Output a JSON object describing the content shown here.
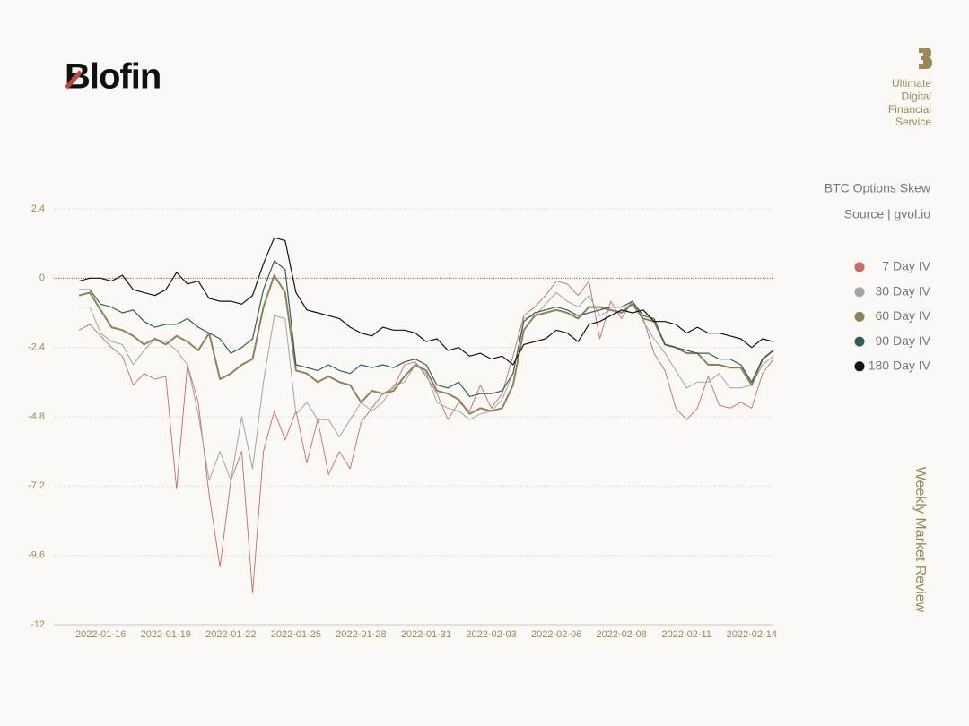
{
  "brand": "Blofin",
  "tagline": [
    "Ultimate",
    "Digital",
    "Financial",
    "Service"
  ],
  "side_label": "Weekly Market Review",
  "chart_data": {
    "type": "line",
    "title": "BTC Options Skew",
    "subtitle": "Source | gvol.io",
    "categories": [
      null,
      null,
      "2022-01-16",
      null,
      null,
      null,
      null,
      null,
      "2022-01-19",
      null,
      null,
      null,
      null,
      null,
      "2022-01-22",
      null,
      null,
      null,
      null,
      null,
      "2022-01-25",
      null,
      null,
      null,
      null,
      null,
      "2022-01-28",
      null,
      null,
      null,
      null,
      null,
      "2022-01-31",
      null,
      null,
      null,
      null,
      null,
      "2022-02-03",
      null,
      null,
      null,
      null,
      null,
      "2022-02-06",
      null,
      null,
      null,
      null,
      null,
      "2022-02-08",
      null,
      null,
      null,
      null,
      null,
      "2022-02-11",
      null,
      null,
      null,
      null,
      null,
      "2022-02-14",
      null,
      null
    ],
    "ylim": [
      -12,
      2.4
    ],
    "yticks": [
      2.4,
      0,
      -2.4,
      -4.8,
      -7.2,
      -9.6,
      -12
    ],
    "grid": true,
    "reference_line": {
      "value": 0,
      "color": "#b8433c"
    },
    "legend": "right",
    "series": [
      {
        "name": "7 Day IV",
        "color": "#c96a64",
        "width": 0.9,
        "values": [
          -1.8,
          -1.6,
          -2.0,
          -2.4,
          -2.7,
          -3.7,
          -3.3,
          -3.5,
          -3.4,
          -7.3,
          -3.0,
          -4.3,
          -7.5,
          -10.0,
          -7.0,
          -6.0,
          -10.9,
          -6.0,
          -4.6,
          -5.6,
          -4.6,
          -6.4,
          -4.9,
          -6.8,
          -6.0,
          -6.6,
          -5.0,
          -4.5,
          -4.0,
          -3.8,
          -3.0,
          -2.9,
          -3.4,
          -4.0,
          -4.9,
          -4.3,
          -4.6,
          -3.7,
          -4.5,
          -4.0,
          -2.7,
          -1.3,
          -1.0,
          -0.6,
          -0.1,
          -0.2,
          -0.6,
          -0.1,
          -2.1,
          -0.8,
          -1.4,
          -0.8,
          -1.4,
          -2.6,
          -3.2,
          -4.5,
          -4.9,
          -4.5,
          -3.4,
          -4.4,
          -4.5,
          -4.3,
          -4.5,
          -3.3,
          -2.8
        ]
      },
      {
        "name": "30 Day IV",
        "color": "#a3a3a3",
        "width": 1,
        "values": [
          -1.0,
          -1.0,
          -1.9,
          -2.2,
          -2.3,
          -3.0,
          -2.5,
          -2.1,
          -2.2,
          -2.5,
          -3.0,
          -4.7,
          -7.0,
          -6.0,
          -7.0,
          -4.8,
          -6.6,
          -3.6,
          -1.3,
          -1.4,
          -4.7,
          -4.3,
          -4.9,
          -4.9,
          -5.5,
          -4.9,
          -4.3,
          -4.6,
          -4.3,
          -3.7,
          -3.6,
          -3.0,
          -3.3,
          -4.3,
          -4.5,
          -4.6,
          -4.9,
          -4.7,
          -4.6,
          -4.2,
          -3.3,
          -1.4,
          -1.3,
          -0.9,
          -0.5,
          -0.8,
          -1.0,
          -0.6,
          -1.3,
          -1.1,
          -1.2,
          -0.8,
          -1.5,
          -2.1,
          -2.6,
          -3.2,
          -3.8,
          -3.6,
          -3.6,
          -3.3,
          -3.8,
          -3.8,
          -3.7,
          -3.0,
          -2.7
        ]
      },
      {
        "name": "60 Day IV",
        "color": "#8f8258",
        "width": 2,
        "values": [
          -0.6,
          -0.5,
          -1.1,
          -1.7,
          -1.8,
          -2.0,
          -2.3,
          -2.1,
          -2.3,
          -2.0,
          -2.2,
          -2.5,
          -1.9,
          -3.5,
          -3.3,
          -3.0,
          -2.8,
          -1.0,
          0.1,
          -0.5,
          -3.2,
          -3.3,
          -3.6,
          -3.4,
          -3.6,
          -3.7,
          -4.3,
          -3.9,
          -4.0,
          -3.9,
          -3.4,
          -3.0,
          -3.2,
          -3.9,
          -4.0,
          -4.2,
          -4.7,
          -4.5,
          -4.6,
          -4.5,
          -3.7,
          -1.8,
          -1.3,
          -1.2,
          -1.1,
          -1.2,
          -1.4,
          -1.0,
          -1.0,
          -1.1,
          -1.2,
          -0.9,
          -1.4,
          -1.5,
          -2.3,
          -2.4,
          -2.6,
          -2.6,
          -3.0,
          -3.0,
          -3.1,
          -3.1,
          -3.7,
          -2.8,
          -2.5
        ]
      },
      {
        "name": "90 Day IV",
        "color": "#2f5e5e",
        "width": 1.2,
        "values": [
          -0.4,
          -0.4,
          -0.9,
          -1.0,
          -1.2,
          -1.1,
          -1.5,
          -1.7,
          -1.6,
          -1.6,
          -1.4,
          -1.7,
          -1.9,
          -2.1,
          -2.6,
          -2.4,
          -2.1,
          -0.4,
          0.6,
          0.3,
          -3.0,
          -3.1,
          -3.2,
          -3.0,
          -3.2,
          -3.3,
          -3.0,
          -3.1,
          -3.0,
          -3.1,
          -2.9,
          -2.8,
          -3.0,
          -3.7,
          -3.8,
          -3.6,
          -4.1,
          -4.0,
          -4.0,
          -3.9,
          -3.3,
          -1.5,
          -1.2,
          -1.1,
          -1.0,
          -1.1,
          -1.3,
          -1.2,
          -1.1,
          -1.0,
          -1.0,
          -0.8,
          -1.3,
          -1.4,
          -2.3,
          -2.4,
          -2.5,
          -2.6,
          -2.6,
          -2.8,
          -2.8,
          -3.0,
          -3.6,
          -2.8,
          -2.5
        ]
      },
      {
        "name": "180 Day IV",
        "color": "#111111",
        "width": 1.2,
        "values": [
          -0.1,
          0,
          0,
          -0.1,
          0.1,
          -0.4,
          -0.5,
          -0.6,
          -0.4,
          0.2,
          -0.2,
          -0.1,
          -0.7,
          -0.8,
          -0.8,
          -0.9,
          -0.6,
          0.5,
          1.4,
          1.3,
          -0.5,
          -1.1,
          -1.2,
          -1.3,
          -1.4,
          -1.7,
          -1.9,
          -2.0,
          -1.7,
          -1.8,
          -1.8,
          -1.9,
          -2.2,
          -2.1,
          -2.5,
          -2.4,
          -2.7,
          -2.6,
          -2.8,
          -2.7,
          -3.0,
          -2.3,
          -2.2,
          -2.1,
          -1.8,
          -1.9,
          -2.2,
          -1.6,
          -1.5,
          -1.3,
          -1.1,
          -1.2,
          -1.1,
          -1.5,
          -1.5,
          -1.6,
          -1.9,
          -1.7,
          -1.9,
          -1.9,
          -2.0,
          -2.1,
          -2.4,
          -2.1,
          -2.2
        ]
      }
    ]
  }
}
